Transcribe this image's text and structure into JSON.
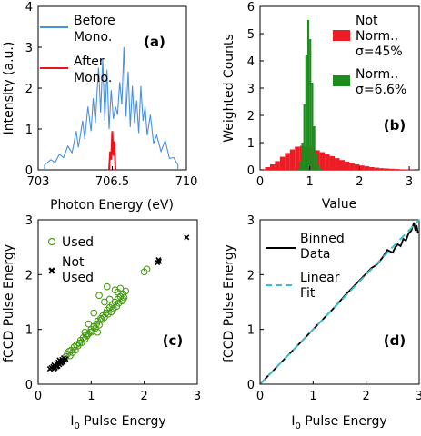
{
  "chart_data": [
    {
      "panel_label": "(a)",
      "type": "line",
      "xlabel": "Photon Energy (eV)",
      "ylabel": "Intensity (a.u.)",
      "xlim": [
        703,
        710
      ],
      "ylim": [
        0,
        4
      ],
      "xticks": [
        "703",
        "706.5",
        "710"
      ],
      "yticks": [
        "0",
        "1",
        "2",
        "3",
        "4"
      ],
      "legend_position": "top-left",
      "series": [
        {
          "name": "Before Mono.",
          "color": "#4a90e2",
          "x": [
            703.3,
            703.6,
            703.8,
            704.0,
            704.2,
            704.4,
            704.6,
            704.8,
            704.9,
            705.1,
            705.2,
            705.35,
            705.5,
            705.6,
            705.7,
            705.85,
            705.95,
            706.05,
            706.15,
            706.25,
            706.35,
            706.45,
            706.55,
            706.65,
            706.75,
            706.85,
            706.95,
            707.05,
            707.15,
            707.25,
            707.35,
            707.45,
            707.55,
            707.65,
            707.75,
            707.85,
            707.95,
            708.05,
            708.15,
            708.3,
            708.45,
            708.6,
            708.8,
            709.0,
            709.2,
            709.4,
            709.6
          ],
          "y": [
            0.12,
            0.25,
            0.18,
            0.38,
            0.3,
            0.58,
            0.42,
            0.95,
            0.55,
            1.2,
            0.75,
            1.55,
            0.95,
            1.75,
            1.15,
            2.5,
            1.4,
            2.7,
            1.2,
            2.45,
            1.0,
            1.95,
            1.25,
            1.55,
            1.35,
            2.15,
            1.6,
            3.0,
            1.3,
            2.4,
            1.05,
            2.05,
            1.15,
            1.7,
            0.9,
            2.05,
            1.2,
            1.55,
            0.85,
            1.35,
            0.65,
            0.85,
            0.45,
            0.72,
            0.28,
            0.3,
            0.12
          ]
        },
        {
          "name": "After Mono.",
          "color": "#e8141b",
          "x": [
            706.35,
            706.4,
            706.45,
            706.5,
            706.55,
            706.6,
            706.65
          ],
          "y": [
            0,
            0.45,
            0.25,
            0.95,
            0.35,
            0.7,
            0
          ]
        }
      ]
    },
    {
      "panel_label": "(b)",
      "type": "bar",
      "xlabel": "Value",
      "ylabel": "Weighted Counts",
      "xlim": [
        0,
        3.2
      ],
      "ylim": [
        0,
        6
      ],
      "xticks": [
        "0",
        "1",
        "2",
        "3"
      ],
      "yticks": [
        "0",
        "1",
        "2",
        "3",
        "4",
        "5",
        "6"
      ],
      "legend_position": "top-right",
      "series": [
        {
          "name": "Not Norm.,",
          "sigma_label": "σ=45%",
          "color": "#ee1c25",
          "x": [
            0.05,
            0.15,
            0.25,
            0.35,
            0.45,
            0.55,
            0.65,
            0.75,
            0.85,
            0.95,
            1.05,
            1.15,
            1.25,
            1.35,
            1.45,
            1.55,
            1.65,
            1.75,
            1.85,
            1.95,
            2.05,
            2.15,
            2.25,
            2.35,
            2.45,
            2.55,
            2.65,
            2.75,
            2.85,
            2.95,
            3.05
          ],
          "y": [
            0.02,
            0.1,
            0.2,
            0.32,
            0.48,
            0.62,
            0.75,
            0.85,
            0.88,
            0.85,
            0.8,
            0.72,
            0.65,
            0.58,
            0.5,
            0.43,
            0.36,
            0.3,
            0.25,
            0.2,
            0.16,
            0.13,
            0.1,
            0.08,
            0.06,
            0.05,
            0.04,
            0.03,
            0.02,
            0.015,
            0.01
          ]
        },
        {
          "name": "Norm.,",
          "sigma_label": "σ=6.6%",
          "color": "#1e8c1e",
          "x": [
            0.77,
            0.81,
            0.85,
            0.89,
            0.93,
            0.97,
            1.01,
            1.05,
            1.09,
            1.13,
            1.17,
            1.21
          ],
          "y": [
            0.05,
            0.3,
            1.0,
            2.4,
            4.2,
            5.5,
            4.8,
            3.2,
            1.6,
            0.6,
            0.2,
            0.05
          ]
        }
      ]
    },
    {
      "panel_label": "(c)",
      "type": "scatter",
      "xlabel": "I0 Pulse Energy",
      "ylabel": "fCCD Pulse Energy",
      "xlim": [
        0,
        3
      ],
      "ylim": [
        0,
        3
      ],
      "xticks": [
        "0",
        "1",
        "2",
        "3"
      ],
      "yticks": [
        "0",
        "1",
        "2",
        "3"
      ],
      "legend_position": "top-left",
      "series": [
        {
          "name": "Used",
          "color": "#4a9a1a",
          "points": [
            [
              0.52,
              0.5
            ],
            [
              0.55,
              0.55
            ],
            [
              0.58,
              0.6
            ],
            [
              0.6,
              0.52
            ],
            [
              0.62,
              0.62
            ],
            [
              0.65,
              0.58
            ],
            [
              0.68,
              0.68
            ],
            [
              0.7,
              0.62
            ],
            [
              0.72,
              0.72
            ],
            [
              0.75,
              0.7
            ],
            [
              0.78,
              0.75
            ],
            [
              0.8,
              0.8
            ],
            [
              0.82,
              0.76
            ],
            [
              0.85,
              0.85
            ],
            [
              0.88,
              0.82
            ],
            [
              0.9,
              0.9
            ],
            [
              0.92,
              0.88
            ],
            [
              0.95,
              0.92
            ],
            [
              0.98,
              0.95
            ],
            [
              1.0,
              1.0
            ],
            [
              1.02,
              0.96
            ],
            [
              1.05,
              1.05
            ],
            [
              1.08,
              1.02
            ],
            [
              1.1,
              1.1
            ],
            [
              1.12,
              1.15
            ],
            [
              1.15,
              1.08
            ],
            [
              1.18,
              1.2
            ],
            [
              1.2,
              1.18
            ],
            [
              1.22,
              1.25
            ],
            [
              1.25,
              1.22
            ],
            [
              1.28,
              1.3
            ],
            [
              1.3,
              1.35
            ],
            [
              1.32,
              1.28
            ],
            [
              1.35,
              1.4
            ],
            [
              1.38,
              1.32
            ],
            [
              1.4,
              1.45
            ],
            [
              1.42,
              1.38
            ],
            [
              1.45,
              1.5
            ],
            [
              1.48,
              1.42
            ],
            [
              1.5,
              1.55
            ],
            [
              1.52,
              1.48
            ],
            [
              1.55,
              1.6
            ],
            [
              1.58,
              1.52
            ],
            [
              1.6,
              1.65
            ],
            [
              1.62,
              1.58
            ],
            [
              1.65,
              1.7
            ],
            [
              1.15,
              1.62
            ],
            [
              1.3,
              1.78
            ],
            [
              1.45,
              1.72
            ],
            [
              1.6,
              1.55
            ],
            [
              1.25,
              1.5
            ],
            [
              0.95,
              1.1
            ],
            [
              1.05,
              1.3
            ],
            [
              1.35,
              1.55
            ],
            [
              1.5,
              1.68
            ],
            [
              1.55,
              1.75
            ],
            [
              2.0,
              2.05
            ],
            [
              2.05,
              2.1
            ],
            [
              1.12,
              0.95
            ],
            [
              0.88,
              0.95
            ]
          ]
        },
        {
          "name": "Not Used",
          "color": "#000000",
          "points": [
            [
              0.22,
              0.28
            ],
            [
              0.25,
              0.3
            ],
            [
              0.28,
              0.32
            ],
            [
              0.3,
              0.35
            ],
            [
              0.32,
              0.3
            ],
            [
              0.35,
              0.38
            ],
            [
              0.37,
              0.33
            ],
            [
              0.38,
              0.4
            ],
            [
              0.4,
              0.36
            ],
            [
              0.42,
              0.42
            ],
            [
              0.43,
              0.38
            ],
            [
              0.45,
              0.45
            ],
            [
              0.47,
              0.41
            ],
            [
              0.48,
              0.48
            ],
            [
              0.5,
              0.44
            ],
            [
              0.52,
              0.46
            ],
            [
              0.3,
              0.28
            ],
            [
              0.35,
              0.32
            ],
            [
              0.4,
              0.44
            ],
            [
              0.45,
              0.4
            ],
            [
              2.25,
              2.22
            ],
            [
              2.27,
              2.27
            ],
            [
              2.28,
              2.24
            ],
            [
              2.8,
              2.68
            ]
          ]
        }
      ]
    },
    {
      "panel_label": "(d)",
      "type": "line",
      "xlabel": "I0 Pulse Energy",
      "ylabel": "fCCD Pulse Energy",
      "xlim": [
        0,
        3
      ],
      "ylim": [
        0,
        3
      ],
      "xticks": [
        "0",
        "1",
        "2",
        "3"
      ],
      "yticks": [
        "0",
        "1",
        "2",
        "3"
      ],
      "legend_position": "top-left",
      "series": [
        {
          "name": "Binned Data",
          "color": "#000000",
          "x": [
            0.05,
            0.2,
            0.4,
            0.6,
            0.8,
            1.0,
            1.2,
            1.4,
            1.6,
            1.8,
            2.0,
            2.1,
            2.2,
            2.3,
            2.4,
            2.5,
            2.55,
            2.6,
            2.65,
            2.7,
            2.75,
            2.8,
            2.85,
            2.9,
            2.93,
            2.95,
            2.98
          ],
          "y": [
            0.05,
            0.2,
            0.4,
            0.6,
            0.8,
            1.0,
            1.2,
            1.4,
            1.62,
            1.82,
            2.02,
            2.12,
            2.18,
            2.3,
            2.45,
            2.4,
            2.5,
            2.55,
            2.52,
            2.65,
            2.62,
            2.75,
            2.8,
            2.95,
            2.8,
            2.9,
            2.75
          ]
        },
        {
          "name": "Linear Fit",
          "color": "#3fc0c8",
          "x": [
            0,
            3
          ],
          "y": [
            0,
            3
          ]
        }
      ]
    }
  ]
}
